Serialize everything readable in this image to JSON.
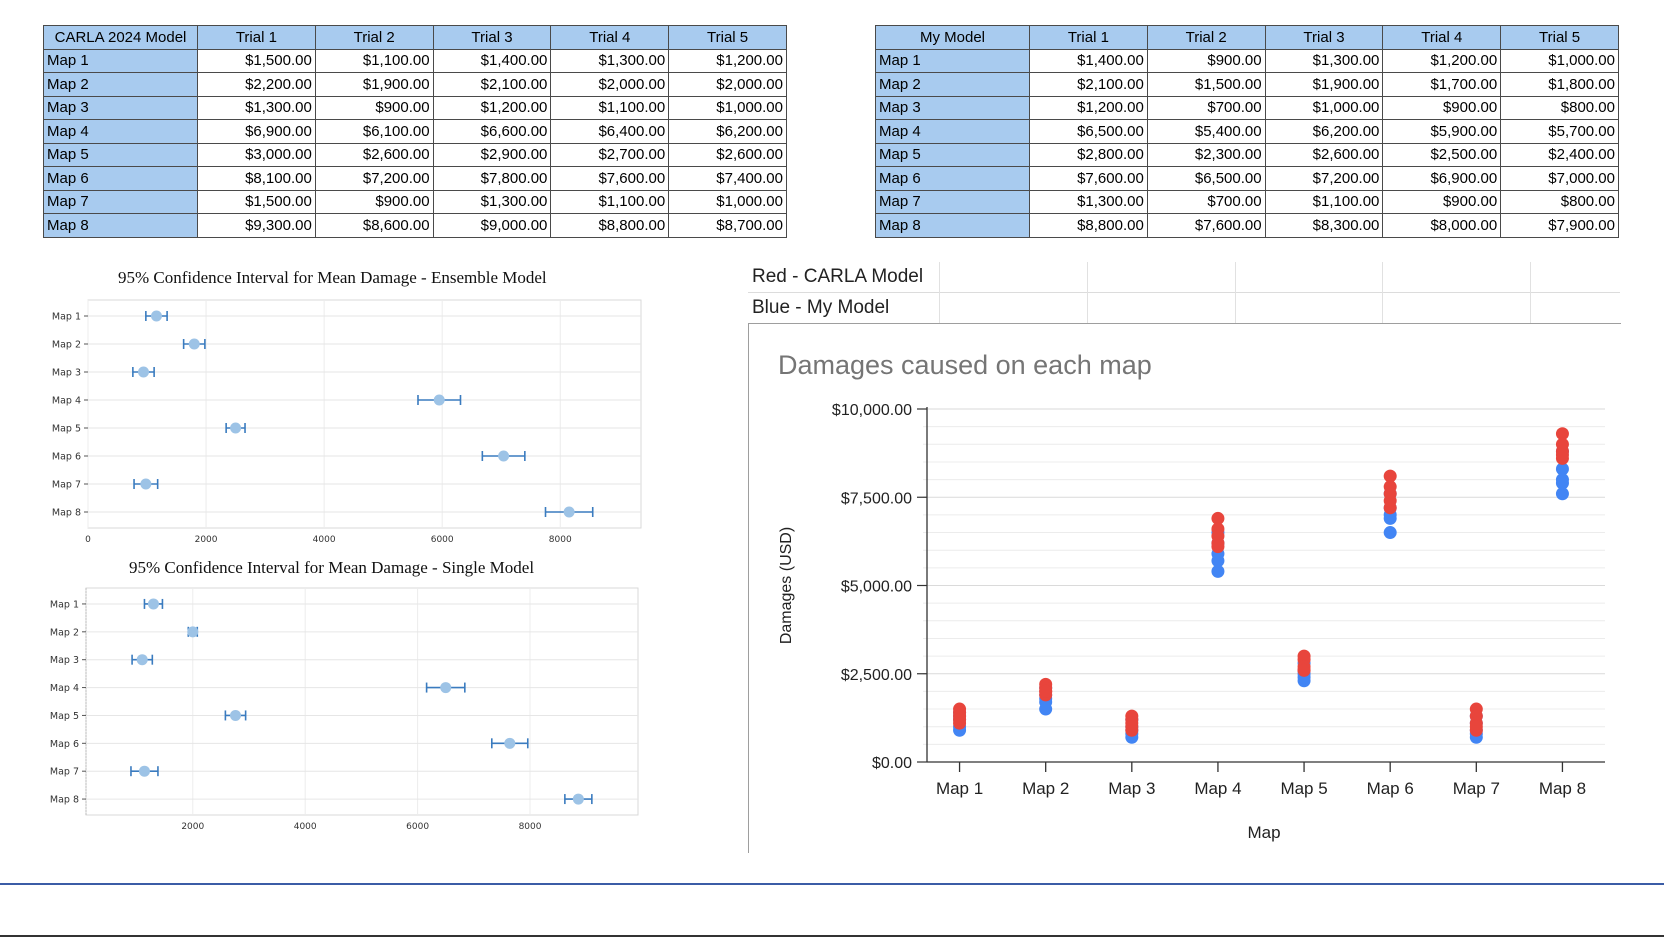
{
  "tables": [
    {
      "id": "carla",
      "header": [
        "CARLA 2024 Model",
        "Trial 1",
        "Trial 2",
        "Trial 3",
        "Trial 4",
        "Trial 5"
      ],
      "rows": [
        [
          "Map 1",
          "$1,500.00",
          "$1,100.00",
          "$1,400.00",
          "$1,300.00",
          "$1,200.00"
        ],
        [
          "Map 2",
          "$2,200.00",
          "$1,900.00",
          "$2,100.00",
          "$2,000.00",
          "$2,000.00"
        ],
        [
          "Map 3",
          "$1,300.00",
          "$900.00",
          "$1,200.00",
          "$1,100.00",
          "$1,000.00"
        ],
        [
          "Map 4",
          "$6,900.00",
          "$6,100.00",
          "$6,600.00",
          "$6,400.00",
          "$6,200.00"
        ],
        [
          "Map 5",
          "$3,000.00",
          "$2,600.00",
          "$2,900.00",
          "$2,700.00",
          "$2,600.00"
        ],
        [
          "Map 6",
          "$8,100.00",
          "$7,200.00",
          "$7,800.00",
          "$7,600.00",
          "$7,400.00"
        ],
        [
          "Map 7",
          "$1,500.00",
          "$900.00",
          "$1,300.00",
          "$1,100.00",
          "$1,000.00"
        ],
        [
          "Map 8",
          "$9,300.00",
          "$8,600.00",
          "$9,000.00",
          "$8,800.00",
          "$8,700.00"
        ]
      ]
    },
    {
      "id": "mine",
      "header": [
        "My Model",
        "Trial 1",
        "Trial 2",
        "Trial 3",
        "Trial 4",
        "Trial 5"
      ],
      "rows": [
        [
          "Map 1",
          "$1,400.00",
          "$900.00",
          "$1,300.00",
          "$1,200.00",
          "$1,000.00"
        ],
        [
          "Map 2",
          "$2,100.00",
          "$1,500.00",
          "$1,900.00",
          "$1,700.00",
          "$1,800.00"
        ],
        [
          "Map 3",
          "$1,200.00",
          "$700.00",
          "$1,000.00",
          "$900.00",
          "$800.00"
        ],
        [
          "Map 4",
          "$6,500.00",
          "$5,400.00",
          "$6,200.00",
          "$5,900.00",
          "$5,700.00"
        ],
        [
          "Map 5",
          "$2,800.00",
          "$2,300.00",
          "$2,600.00",
          "$2,500.00",
          "$2,400.00"
        ],
        [
          "Map 6",
          "$7,600.00",
          "$6,500.00",
          "$7,200.00",
          "$6,900.00",
          "$7,000.00"
        ],
        [
          "Map 7",
          "$1,300.00",
          "$700.00",
          "$1,100.00",
          "$900.00",
          "$800.00"
        ],
        [
          "Map 8",
          "$8,800.00",
          "$7,600.00",
          "$8,300.00",
          "$8,000.00",
          "$7,900.00"
        ]
      ]
    }
  ],
  "legend": {
    "red": "Red - CARLA Model",
    "blue": "Blue - My Model"
  },
  "colors": {
    "header_fill": "#a8cbef",
    "ci_point": "#9dc3e6",
    "ci_bar": "#3a7bbf",
    "carla_red": "#e8453c",
    "my_blue": "#4285f4"
  },
  "chart_data": [
    {
      "id": "ci_ensemble",
      "type": "scatter",
      "title": "95% Confidence Interval for Mean Damage - Ensemble Model",
      "categories": [
        "Map 1",
        "Map 2",
        "Map 3",
        "Map 4",
        "Map 5",
        "Map 6",
        "Map 7",
        "Map 8"
      ],
      "means": [
        1160,
        1800,
        940,
        5950,
        2500,
        7040,
        980,
        8150
      ],
      "lower": [
        980,
        1620,
        760,
        5590,
        2340,
        6680,
        780,
        7750
      ],
      "upper": [
        1340,
        1980,
        1120,
        6310,
        2660,
        7400,
        1180,
        8550
      ],
      "xticks": [
        0,
        2000,
        4000,
        6000,
        8000
      ],
      "xlim": [
        0,
        9300
      ],
      "grid": true
    },
    {
      "id": "ci_single",
      "type": "scatter",
      "title": "95% Confidence Interval for Mean Damage - Single Model",
      "categories": [
        "Map 1",
        "Map 2",
        "Map 3",
        "Map 4",
        "Map 5",
        "Map 6",
        "Map 7",
        "Map 8"
      ],
      "means": [
        1300,
        2000,
        1100,
        6500,
        2760,
        7640,
        1140,
        8860
      ],
      "lower": [
        1140,
        1920,
        920,
        6160,
        2580,
        7320,
        900,
        8620
      ],
      "upper": [
        1460,
        2080,
        1280,
        6840,
        2940,
        7960,
        1380,
        9100
      ],
      "xticks": [
        2000,
        4000,
        6000,
        8000
      ],
      "xlim": [
        100,
        9850
      ],
      "grid": true
    },
    {
      "id": "damages",
      "type": "scatter",
      "title": "Damages caused on each map",
      "xlabel": "Map",
      "ylabel": "Damages (USD)",
      "categories": [
        "Map 1",
        "Map 2",
        "Map 3",
        "Map 4",
        "Map 5",
        "Map 6",
        "Map 7",
        "Map 8"
      ],
      "ylim": [
        0,
        10000
      ],
      "yticks": [
        "$0.00",
        "$2,500.00",
        "$5,000.00",
        "$7,500.00",
        "$10,000.00"
      ],
      "ytick_values": [
        0,
        2500,
        5000,
        7500,
        10000
      ],
      "grid": true,
      "series": [
        {
          "name": "Red - CARLA Model",
          "color": "#e8453c",
          "values": [
            [
              1500,
              1100,
              1400,
              1300,
              1200
            ],
            [
              2200,
              1900,
              2100,
              2000,
              2000
            ],
            [
              1300,
              900,
              1200,
              1100,
              1000
            ],
            [
              6900,
              6100,
              6600,
              6400,
              6200
            ],
            [
              3000,
              2600,
              2900,
              2700,
              2600
            ],
            [
              8100,
              7200,
              7800,
              7600,
              7400
            ],
            [
              1500,
              900,
              1300,
              1100,
              1000
            ],
            [
              9300,
              8600,
              9000,
              8800,
              8700
            ]
          ]
        },
        {
          "name": "Blue - My Model",
          "color": "#4285f4",
          "values": [
            [
              1400,
              900,
              1300,
              1200,
              1000
            ],
            [
              2100,
              1500,
              1900,
              1700,
              1800
            ],
            [
              1200,
              700,
              1000,
              900,
              800
            ],
            [
              6500,
              5400,
              6200,
              5900,
              5700
            ],
            [
              2800,
              2300,
              2600,
              2500,
              2400
            ],
            [
              7600,
              6500,
              7200,
              6900,
              7000
            ],
            [
              1300,
              700,
              1100,
              900,
              800
            ],
            [
              8800,
              7600,
              8300,
              8000,
              7900
            ]
          ]
        }
      ]
    }
  ]
}
